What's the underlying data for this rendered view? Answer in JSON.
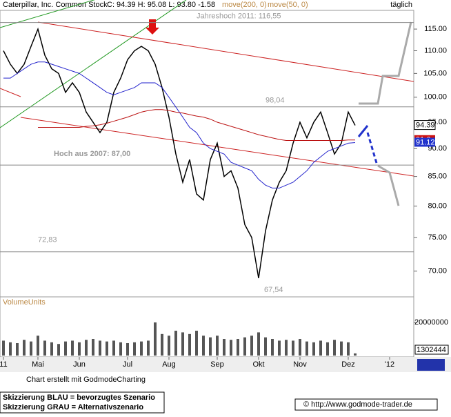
{
  "chart_data": {
    "type": "line",
    "title": "Caterpillar, Inc. Common Stock",
    "quote": "C: 94.39 H: 95.08 L: 93.80 -1.58",
    "period": "täglich",
    "categories": [
      "11",
      null,
      null,
      null,
      null,
      "Mai",
      null,
      null,
      null,
      null,
      null,
      "Jun",
      null,
      null,
      null,
      null,
      null,
      null,
      "Jul",
      null,
      null,
      null,
      null,
      null,
      "Aug",
      null,
      null,
      null,
      null,
      null,
      null,
      "Sep",
      null,
      null,
      null,
      null,
      null,
      "Okt",
      null,
      null,
      null,
      null,
      null,
      "Nov",
      null,
      null,
      null,
      null,
      null,
      null,
      "Dez",
      null,
      null,
      null,
      null,
      null,
      "'12",
      null,
      null,
      null
    ],
    "series": [
      {
        "color": "#000000",
        "values": [
          110,
          107,
          105,
          107,
          111,
          115,
          109,
          106,
          105,
          101,
          103,
          101,
          97,
          95,
          93,
          95,
          101,
          104,
          108,
          110,
          111,
          110,
          107,
          102,
          96,
          89,
          84,
          88,
          82,
          81,
          88,
          91,
          85,
          86,
          83,
          77,
          75,
          69,
          76,
          81,
          84,
          86,
          91,
          95,
          92,
          95,
          97,
          93,
          89,
          91,
          97,
          94.39,
          null,
          null,
          null,
          null,
          null,
          null,
          null,
          null
        ]
      },
      {
        "name": "move(50, 0)",
        "color": "#2222cc",
        "values": [
          104,
          104,
          105,
          106,
          107,
          107.5,
          107.5,
          107,
          106.5,
          106,
          105.5,
          105,
          104,
          103,
          102,
          101,
          100.5,
          101,
          101.5,
          102,
          103,
          103,
          103,
          102,
          100,
          98,
          96,
          94,
          93,
          91,
          90,
          89.5,
          89,
          87.5,
          87,
          86.5,
          86,
          84.5,
          83.5,
          83,
          83,
          83.5,
          84,
          85,
          86,
          87.5,
          88.5,
          89.5,
          90,
          90.5,
          91,
          91.12,
          null,
          null,
          null,
          null,
          null,
          null,
          null,
          null
        ]
      },
      {
        "name": "move(200, 0)",
        "color": "#bb1111",
        "values": [
          null,
          null,
          null,
          null,
          null,
          94,
          94,
          94,
          94,
          94,
          94,
          94,
          94.2,
          94.3,
          94.5,
          94.8,
          95.2,
          95.6,
          96,
          96.5,
          97,
          97.3,
          97.5,
          97.5,
          97.3,
          97,
          96.8,
          96.5,
          96.2,
          96,
          95.6,
          95,
          94.6,
          94.2,
          93.8,
          93.4,
          93,
          92.6,
          92.3,
          92,
          91.7,
          91.5,
          91.5,
          91.5,
          91.5,
          91.5,
          91.5,
          91.5,
          91.5,
          91.5,
          91.6,
          91.6,
          null,
          null,
          null,
          null,
          null,
          null,
          null,
          null
        ]
      }
    ],
    "ylim": [
      66.4,
      119.5
    ],
    "log_scale": true,
    "yticks": [
      {
        "value": 70,
        "label": "70.00"
      },
      {
        "value": 75,
        "label": "75.00"
      },
      {
        "value": 80,
        "label": "80.00"
      },
      {
        "value": 85,
        "label": "85.00"
      },
      {
        "value": 90,
        "label": "90.00"
      },
      {
        "value": 95,
        "label": "95.00"
      },
      {
        "value": 100,
        "label": "100.00"
      },
      {
        "value": 105,
        "label": "105.00"
      },
      {
        "value": 110,
        "label": "110.00"
      },
      {
        "value": 115,
        "label": "115.00"
      }
    ],
    "levels": [
      {
        "value": 116.55,
        "label": "Jahreshoch 2011: 116,55"
      },
      {
        "value": 98.04,
        "label": "98,04"
      },
      {
        "value": 87,
        "label": "Hoch aus 2007: 87,00"
      },
      {
        "value": 72.83,
        "label": "72,83"
      }
    ],
    "low_label": {
      "value": 67.54,
      "label": "67,54"
    },
    "volume": {
      "title": "VolumeUnits",
      "color": "#555555",
      "ylim": [
        0,
        34600000
      ],
      "yticks": [
        20000000
      ],
      "values": [
        9000000,
        8000000,
        7500000,
        9500000,
        8500000,
        12000000,
        9000000,
        8000000,
        7000000,
        8500000,
        9000000,
        8000000,
        9500000,
        10000000,
        9000000,
        8500000,
        9000000,
        8000000,
        7500000,
        8000000,
        8500000,
        9000000,
        20000000,
        13000000,
        12000000,
        15000000,
        14000000,
        13000000,
        15000000,
        12000000,
        11000000,
        12000000,
        10000000,
        9500000,
        10000000,
        11000000,
        12000000,
        14000000,
        11000000,
        10000000,
        9000000,
        9500000,
        9000000,
        10000000,
        8500000,
        8000000,
        9000000,
        8000000,
        9500000,
        8500000,
        8000000,
        1302444
      ]
    },
    "footer": "Chart erstellt mit GodmodeCharting",
    "legend": [
      "Skizzierung BLAU = bevorzugtes Szenario",
      "Skizzierung GRAU = Alternativszenario"
    ],
    "source": "© http://www.godmode-trader.de"
  }
}
